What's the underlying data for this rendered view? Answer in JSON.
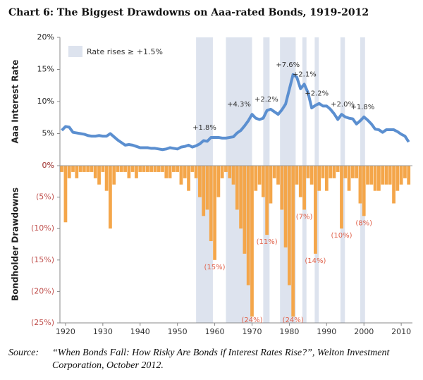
{
  "title": "Chart 6: The Biggest Drawdowns on Aaa-rated Bonds, 1919-2012",
  "source": {
    "label": "Source:",
    "text": "“When Bonds Fall: How Risky Are Bonds if Interest Rates Rise?”, Welton Investment Corporation, October 2012."
  },
  "chart_data": [
    {
      "type": "line",
      "ylabel": "Aaa Interest Rate",
      "color": "#5b8fd0",
      "xlim": [
        1918.5,
        2013
      ],
      "ylim": [
        0,
        20
      ],
      "yticks": [
        {
          "value": 0,
          "label": "0%"
        },
        {
          "value": 5,
          "label": "5%"
        },
        {
          "value": 10,
          "label": "10%"
        },
        {
          "value": 15,
          "label": "15%"
        },
        {
          "value": 20,
          "label": "20%"
        }
      ],
      "band_legend": "Rate rises ≥ +1.5%",
      "band_color": "#dde3ee",
      "bands": [
        {
          "start": 1955,
          "end": 1959.5,
          "rise": 1.8,
          "label": "+1.8%"
        },
        {
          "start": 1963,
          "end": 1970,
          "rise": 4.3,
          "label": "+4.3%"
        },
        {
          "start": 1973,
          "end": 1974.7,
          "rise": 2.2,
          "label": "+2.2%"
        },
        {
          "start": 1977.5,
          "end": 1981.7,
          "rise": 7.6,
          "label": "+7.6%"
        },
        {
          "start": 1983.5,
          "end": 1984.6,
          "rise": 2.1,
          "label": "+2.1%"
        },
        {
          "start": 1986.8,
          "end": 1987.9,
          "rise": 2.2,
          "label": "+2.2%"
        },
        {
          "start": 1993.7,
          "end": 1994.9,
          "rise": 2.0,
          "label": "+2.0%"
        },
        {
          "start": 1999,
          "end": 2000.3,
          "rise": 1.8,
          "label": "+1.8%"
        }
      ],
      "x": [
        1919,
        1920,
        1921,
        1922,
        1923,
        1924,
        1925,
        1926,
        1927,
        1928,
        1929,
        1930,
        1931,
        1932,
        1933,
        1934,
        1935,
        1936,
        1937,
        1938,
        1939,
        1940,
        1941,
        1942,
        1943,
        1944,
        1945,
        1946,
        1947,
        1948,
        1949,
        1950,
        1951,
        1952,
        1953,
        1954,
        1955,
        1956,
        1957,
        1958,
        1959,
        1960,
        1961,
        1962,
        1963,
        1964,
        1965,
        1966,
        1967,
        1968,
        1969,
        1970,
        1971,
        1972,
        1973,
        1974,
        1975,
        1976,
        1977,
        1978,
        1979,
        1980,
        1981,
        1982,
        1983,
        1984,
        1985,
        1986,
        1987,
        1988,
        1989,
        1990,
        1991,
        1992,
        1993,
        1994,
        1995,
        1996,
        1997,
        1998,
        1999,
        2000,
        2001,
        2002,
        2003,
        2004,
        2005,
        2006,
        2007,
        2008,
        2009,
        2010,
        2011,
        2012
      ],
      "values": [
        5.5,
        6.1,
        6.0,
        5.2,
        5.1,
        5.0,
        4.9,
        4.7,
        4.6,
        4.6,
        4.7,
        4.6,
        4.6,
        5.0,
        4.5,
        4.0,
        3.6,
        3.2,
        3.3,
        3.2,
        3.0,
        2.8,
        2.8,
        2.8,
        2.7,
        2.7,
        2.6,
        2.5,
        2.6,
        2.8,
        2.7,
        2.6,
        2.9,
        3.0,
        3.2,
        2.9,
        3.1,
        3.4,
        3.9,
        3.8,
        4.4,
        4.4,
        4.4,
        4.3,
        4.3,
        4.4,
        4.5,
        5.1,
        5.5,
        6.2,
        7.0,
        8.0,
        7.4,
        7.2,
        7.4,
        8.6,
        8.8,
        8.4,
        8.0,
        8.7,
        9.6,
        11.9,
        14.2,
        13.8,
        12.0,
        12.7,
        11.4,
        9.0,
        9.4,
        9.7,
        9.3,
        9.3,
        8.8,
        8.1,
        7.2,
        8.0,
        7.6,
        7.4,
        7.3,
        6.5,
        7.0,
        7.6,
        7.1,
        6.5,
        5.7,
        5.6,
        5.2,
        5.6,
        5.6,
        5.6,
        5.3,
        4.9,
        4.6,
        3.7
      ]
    },
    {
      "type": "bar",
      "ylabel": "Bondholder Drawdowns",
      "color": "#f4a64a",
      "xlim": [
        1918.5,
        2013
      ],
      "ylim": [
        -25,
        0
      ],
      "xticks": [
        1920,
        1930,
        1940,
        1950,
        1960,
        1970,
        1980,
        1990,
        2000,
        2010
      ],
      "yticks": [
        {
          "value": 0,
          "label": "0%"
        },
        {
          "value": -5,
          "label": "(5%)"
        },
        {
          "value": -10,
          "label": "(10%)"
        },
        {
          "value": -15,
          "label": "(15%)"
        },
        {
          "value": -20,
          "label": "(20%)"
        },
        {
          "value": -25,
          "label": "(25%)"
        }
      ],
      "annotations": [
        {
          "x": 1960,
          "value": -15,
          "label": "(15%)"
        },
        {
          "x": 1970,
          "value": -24,
          "label": "(24%)"
        },
        {
          "x": 1974,
          "value": -11,
          "label": "(11%)"
        },
        {
          "x": 1981,
          "value": -24,
          "label": "(24%)"
        },
        {
          "x": 1984,
          "value": -7,
          "label": "(7%)"
        },
        {
          "x": 1987,
          "value": -14,
          "label": "(14%)"
        },
        {
          "x": 1994,
          "value": -10,
          "label": "(10%)"
        },
        {
          "x": 2000,
          "value": -8,
          "label": "(8%)"
        }
      ],
      "x": [
        1919,
        1920,
        1921,
        1922,
        1923,
        1924,
        1925,
        1926,
        1927,
        1928,
        1929,
        1930,
        1931,
        1932,
        1933,
        1934,
        1935,
        1936,
        1937,
        1938,
        1939,
        1940,
        1941,
        1942,
        1943,
        1944,
        1945,
        1946,
        1947,
        1948,
        1949,
        1950,
        1951,
        1952,
        1953,
        1954,
        1955,
        1956,
        1957,
        1958,
        1959,
        1960,
        1961,
        1962,
        1963,
        1964,
        1965,
        1966,
        1967,
        1968,
        1969,
        1970,
        1971,
        1972,
        1973,
        1974,
        1975,
        1976,
        1977,
        1978,
        1979,
        1980,
        1981,
        1982,
        1983,
        1984,
        1985,
        1986,
        1987,
        1988,
        1989,
        1990,
        1991,
        1992,
        1993,
        1994,
        1995,
        1996,
        1997,
        1998,
        1999,
        2000,
        2001,
        2002,
        2003,
        2004,
        2005,
        2006,
        2007,
        2008,
        2009,
        2010,
        2011,
        2012
      ],
      "values": [
        -1,
        -9,
        -2,
        -1,
        -2,
        -1,
        -1,
        -1,
        -1,
        -2,
        -3,
        -1,
        -4,
        -10,
        -3,
        -1,
        -1,
        -1,
        -2,
        -1,
        -2,
        -1,
        -1,
        -1,
        -1,
        -1,
        -1,
        -1,
        -2,
        -2,
        -1,
        -1,
        -3,
        -2,
        -4,
        -1,
        -2,
        -5,
        -8,
        -7,
        -12,
        -15,
        -5,
        -2,
        -1,
        -2,
        -3,
        -7,
        -10,
        -14,
        -19,
        -24,
        -4,
        -3,
        -5,
        -11,
        -6,
        -2,
        -3,
        -7,
        -13,
        -19,
        -24,
        -3,
        -5,
        -7,
        -2,
        -3,
        -14,
        -4,
        -2,
        -4,
        -2,
        -2,
        -1,
        -10,
        -2,
        -4,
        -2,
        -2,
        -6,
        -8,
        -3,
        -3,
        -4,
        -4,
        -3,
        -3,
        -3,
        -6,
        -4,
        -3,
        -2,
        -3
      ]
    }
  ]
}
